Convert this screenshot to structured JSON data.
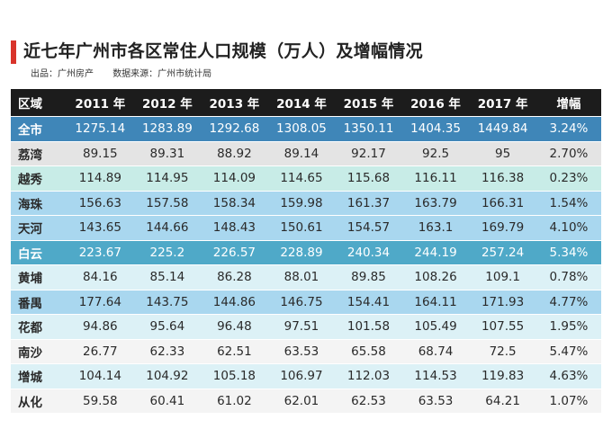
{
  "title": "近七年广州市各区常住人口规模（万人）及增幅情况",
  "source_line": {
    "producer": "出品：广州房产",
    "data_source": "数据来源：广州市统计局"
  },
  "table": {
    "headers": [
      "区域",
      "2011 年",
      "2012 年",
      "2013 年",
      "2014 年",
      "2015 年",
      "2016 年",
      "2017 年",
      "增幅"
    ],
    "rows": [
      {
        "style": "total",
        "cells": [
          "全市",
          "1275.14",
          "1283.89",
          "1292.68",
          "1308.05",
          "1350.11",
          "1404.35",
          "1449.84",
          "3.24%"
        ]
      },
      {
        "style": "grey",
        "cells": [
          "荔湾",
          "89.15",
          "89.31",
          "88.92",
          "89.14",
          "92.17",
          "92.5",
          "95",
          "2.70%"
        ]
      },
      {
        "style": "mint",
        "cells": [
          "越秀",
          "114.89",
          "114.95",
          "114.09",
          "114.65",
          "115.68",
          "116.11",
          "116.38",
          "0.23%"
        ]
      },
      {
        "style": "blue",
        "cells": [
          "海珠",
          "156.63",
          "157.58",
          "158.34",
          "159.98",
          "161.37",
          "163.79",
          "166.31",
          "1.54%"
        ]
      },
      {
        "style": "blue",
        "cells": [
          "天河",
          "143.65",
          "144.66",
          "148.43",
          "150.61",
          "154.57",
          "163.1",
          "169.79",
          "4.10%"
        ]
      },
      {
        "style": "teal",
        "cells": [
          "白云",
          "223.67",
          "225.2",
          "226.57",
          "228.89",
          "240.34",
          "244.19",
          "257.24",
          "5.34%"
        ]
      },
      {
        "style": "pale",
        "cells": [
          "黄埔",
          "84.16",
          "85.14",
          "86.28",
          "88.01",
          "89.85",
          "108.26",
          "109.1",
          "0.78%"
        ]
      },
      {
        "style": "blue",
        "cells": [
          "番禺",
          "177.64",
          "143.75",
          "144.86",
          "146.75",
          "154.41",
          "164.11",
          "171.93",
          "4.77%"
        ]
      },
      {
        "style": "pale",
        "cells": [
          "花都",
          "94.86",
          "95.64",
          "96.48",
          "97.51",
          "101.58",
          "105.49",
          "107.55",
          "1.95%"
        ]
      },
      {
        "style": "white",
        "cells": [
          "南沙",
          "26.77",
          "62.33",
          "62.51",
          "63.53",
          "65.58",
          "68.74",
          "72.5",
          "5.47%"
        ]
      },
      {
        "style": "pale",
        "cells": [
          "增城",
          "104.14",
          "104.92",
          "105.18",
          "106.97",
          "112.03",
          "114.53",
          "119.83",
          "4.63%"
        ]
      },
      {
        "style": "white",
        "cells": [
          "从化",
          "59.58",
          "60.41",
          "61.02",
          "62.01",
          "62.53",
          "63.53",
          "64.21",
          "1.07%"
        ]
      }
    ]
  },
  "colors": {
    "accent": "#d9342b",
    "header_bg": "#1c1c1c",
    "total_row": "#3f86b8"
  }
}
